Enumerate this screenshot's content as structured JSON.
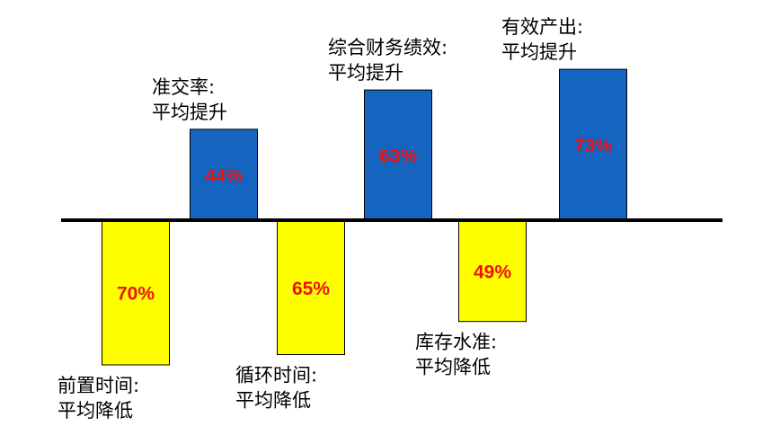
{
  "chart_data": {
    "type": "bar",
    "title": "",
    "xlabel": "",
    "ylabel": "",
    "ylim": [
      -78,
      76
    ],
    "grid": false,
    "legend": "none",
    "colors": {
      "increase": "#1565c0",
      "decrease": "#ffff00",
      "value_text": "#ee1111",
      "axis": "#000000"
    },
    "bars": [
      {
        "value": -70,
        "value_label": "70%",
        "caption": [
          "前置时间:",
          "平均降低"
        ]
      },
      {
        "value": 44,
        "value_label": "44%",
        "caption": [
          "准交率:",
          "平均提升"
        ]
      },
      {
        "value": -65,
        "value_label": "65%",
        "caption": [
          "循环时间:",
          "平均降低"
        ]
      },
      {
        "value": 63,
        "value_label": "63%",
        "caption": [
          "综合财务绩效:",
          "平均提升"
        ]
      },
      {
        "value": -49,
        "value_label": "49%",
        "caption": [
          "库存水准:",
          "平均降低"
        ]
      },
      {
        "value": 73,
        "value_label": "73%",
        "caption": [
          "有效产出:",
          "平均提升"
        ]
      }
    ]
  }
}
